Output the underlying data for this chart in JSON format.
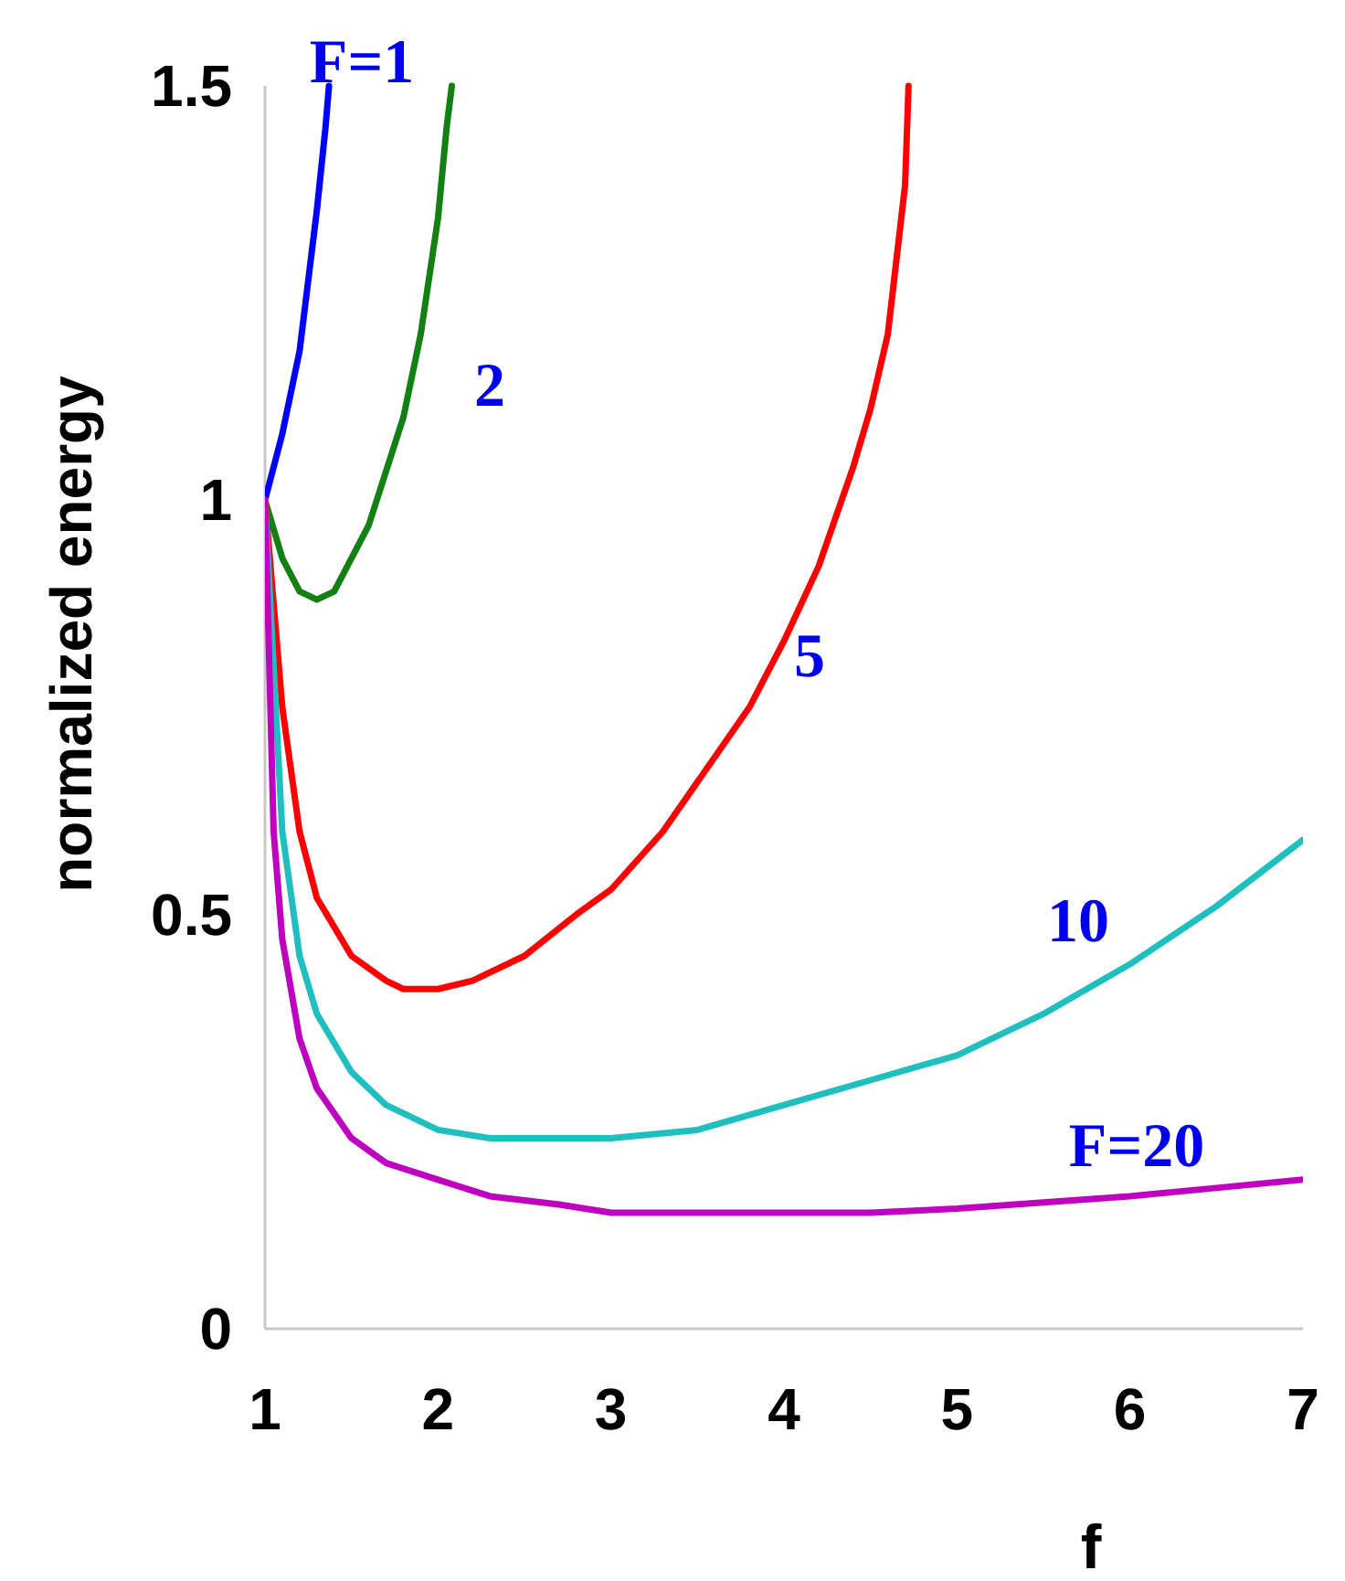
{
  "chart_data": {
    "type": "line",
    "xlabel": "f",
    "ylabel": "normalized energy",
    "xlim": [
      1,
      7
    ],
    "ylim": [
      0,
      1.5
    ],
    "xticks": [
      1,
      2,
      3,
      4,
      5,
      6,
      7
    ],
    "yticks": [
      0,
      0.5,
      1,
      1.5
    ],
    "grid": false,
    "marker": "none",
    "line_style": "solid",
    "series": [
      {
        "name": "F=1",
        "color": "#0000ff",
        "x": [
          1,
          1.1,
          1.2,
          1.3,
          1.35,
          1.37
        ],
        "values": [
          1,
          1.08,
          1.18,
          1.35,
          1.45,
          1.5
        ]
      },
      {
        "name": "2",
        "color": "#138013",
        "x": [
          1,
          1.1,
          1.2,
          1.3,
          1.4,
          1.5,
          1.6,
          1.8,
          1.9,
          2.0,
          2.05,
          2.08
        ],
        "values": [
          1,
          0.93,
          0.89,
          0.88,
          0.89,
          0.93,
          0.97,
          1.1,
          1.2,
          1.34,
          1.45,
          1.5
        ]
      },
      {
        "name": "5",
        "color": "#ff0000",
        "x": [
          1,
          1.1,
          1.2,
          1.3,
          1.5,
          1.7,
          1.8,
          2,
          2.2,
          2.5,
          2.8,
          3,
          3.3,
          3.5,
          3.8,
          4,
          4.2,
          4.4,
          4.5,
          4.6,
          4.7,
          4.72
        ],
        "values": [
          1,
          0.75,
          0.6,
          0.52,
          0.45,
          0.42,
          0.41,
          0.41,
          0.42,
          0.45,
          0.5,
          0.53,
          0.6,
          0.66,
          0.75,
          0.83,
          0.92,
          1.04,
          1.11,
          1.2,
          1.38,
          1.5
        ]
      },
      {
        "name": "10",
        "color": "#1fbfbf",
        "x": [
          1,
          1.1,
          1.2,
          1.3,
          1.5,
          1.7,
          2,
          2.3,
          3,
          3.5,
          4,
          4.5,
          5,
          5.5,
          6,
          6.5,
          7
        ],
        "values": [
          1,
          0.6,
          0.45,
          0.38,
          0.31,
          0.27,
          0.24,
          0.23,
          0.23,
          0.24,
          0.27,
          0.3,
          0.33,
          0.38,
          0.44,
          0.51,
          0.59
        ]
      },
      {
        "name": "F=20",
        "color": "#bf00bf",
        "x": [
          1,
          1.05,
          1.1,
          1.2,
          1.3,
          1.5,
          1.7,
          2,
          2.3,
          2.7,
          3,
          4,
          4.5,
          5,
          6,
          6.5,
          7
        ],
        "values": [
          1,
          0.6,
          0.47,
          0.35,
          0.29,
          0.23,
          0.2,
          0.18,
          0.16,
          0.15,
          0.14,
          0.14,
          0.14,
          0.145,
          0.16,
          0.17,
          0.18
        ]
      }
    ]
  }
}
